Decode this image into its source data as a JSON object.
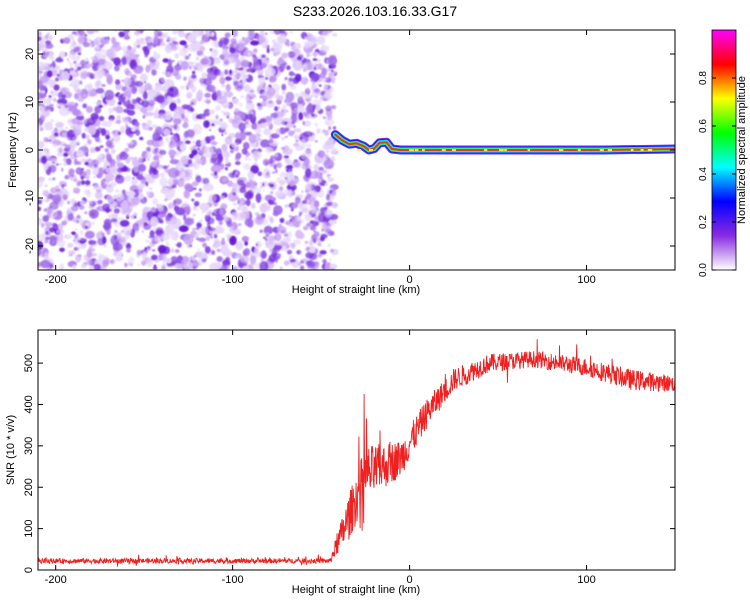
{
  "title": "S233.2026.103.16.33.G17",
  "chart_data": [
    {
      "type": "heatmap",
      "xlabel": "Height of straight line (km)",
      "ylabel": "Frequency (Hz)",
      "xlim": [
        -210,
        150
      ],
      "ylim": [
        -25,
        25
      ],
      "xticks": [
        -200,
        -100,
        0,
        100
      ],
      "yticks": [
        -20,
        -10,
        0,
        10,
        20
      ],
      "noise_region": {
        "x_from": -210,
        "x_to": -42,
        "y_from": -25,
        "y_to": 25
      },
      "signal_track": [
        {
          "x": -42,
          "f": 3.2
        },
        {
          "x": -38,
          "f": 2.0
        },
        {
          "x": -34,
          "f": 1.2
        },
        {
          "x": -30,
          "f": 1.4
        },
        {
          "x": -26,
          "f": 0.8
        },
        {
          "x": -23,
          "f": 0.0
        },
        {
          "x": -20,
          "f": 0.3
        },
        {
          "x": -17,
          "f": 1.5
        },
        {
          "x": -13,
          "f": 1.6
        },
        {
          "x": -10,
          "f": 0.2
        },
        {
          "x": -5,
          "f": 0.0
        },
        {
          "x": 10,
          "f": 0.0
        },
        {
          "x": 60,
          "f": 0.0
        },
        {
          "x": 110,
          "f": 0.0
        },
        {
          "x": 150,
          "f": 0.2
        }
      ],
      "colorbar": {
        "label": "Normalized spectral amplitude",
        "ticks": [
          0.0,
          0.2,
          0.4,
          0.6,
          0.8
        ],
        "tick_labels": [
          "0.0",
          "0.2",
          "0.4",
          "0.6",
          "0.8"
        ],
        "range": [
          0,
          1
        ],
        "colors": [
          "#ffffff",
          "#8a2be2",
          "#0000ff",
          "#00ffff",
          "#00ff00",
          "#ffff00",
          "#ff0000",
          "#ff00ff"
        ]
      }
    },
    {
      "type": "line",
      "xlabel": "Height of straight line (km)",
      "ylabel": "SNR (10 * v/v)",
      "xlim": [
        -210,
        150
      ],
      "ylim": [
        0,
        580
      ],
      "xticks": [
        -200,
        -100,
        0,
        100
      ],
      "yticks": [
        0,
        100,
        200,
        300,
        400,
        500
      ],
      "series_color": "#ee2020",
      "envelope": [
        {
          "x": -210,
          "mean": 22,
          "spread": 12
        },
        {
          "x": -45,
          "mean": 22,
          "spread": 12
        },
        {
          "x": -35,
          "mean": 120,
          "spread": 110
        },
        {
          "x": -25,
          "mean": 230,
          "spread": 140
        },
        {
          "x": -15,
          "mean": 250,
          "spread": 110
        },
        {
          "x": -5,
          "mean": 270,
          "spread": 90
        },
        {
          "x": 10,
          "mean": 380,
          "spread": 70
        },
        {
          "x": 25,
          "mean": 460,
          "spread": 55
        },
        {
          "x": 45,
          "mean": 500,
          "spread": 45
        },
        {
          "x": 70,
          "mean": 510,
          "spread": 40
        },
        {
          "x": 100,
          "mean": 490,
          "spread": 45
        },
        {
          "x": 125,
          "mean": 460,
          "spread": 50
        },
        {
          "x": 150,
          "mean": 450,
          "spread": 40
        }
      ]
    }
  ]
}
